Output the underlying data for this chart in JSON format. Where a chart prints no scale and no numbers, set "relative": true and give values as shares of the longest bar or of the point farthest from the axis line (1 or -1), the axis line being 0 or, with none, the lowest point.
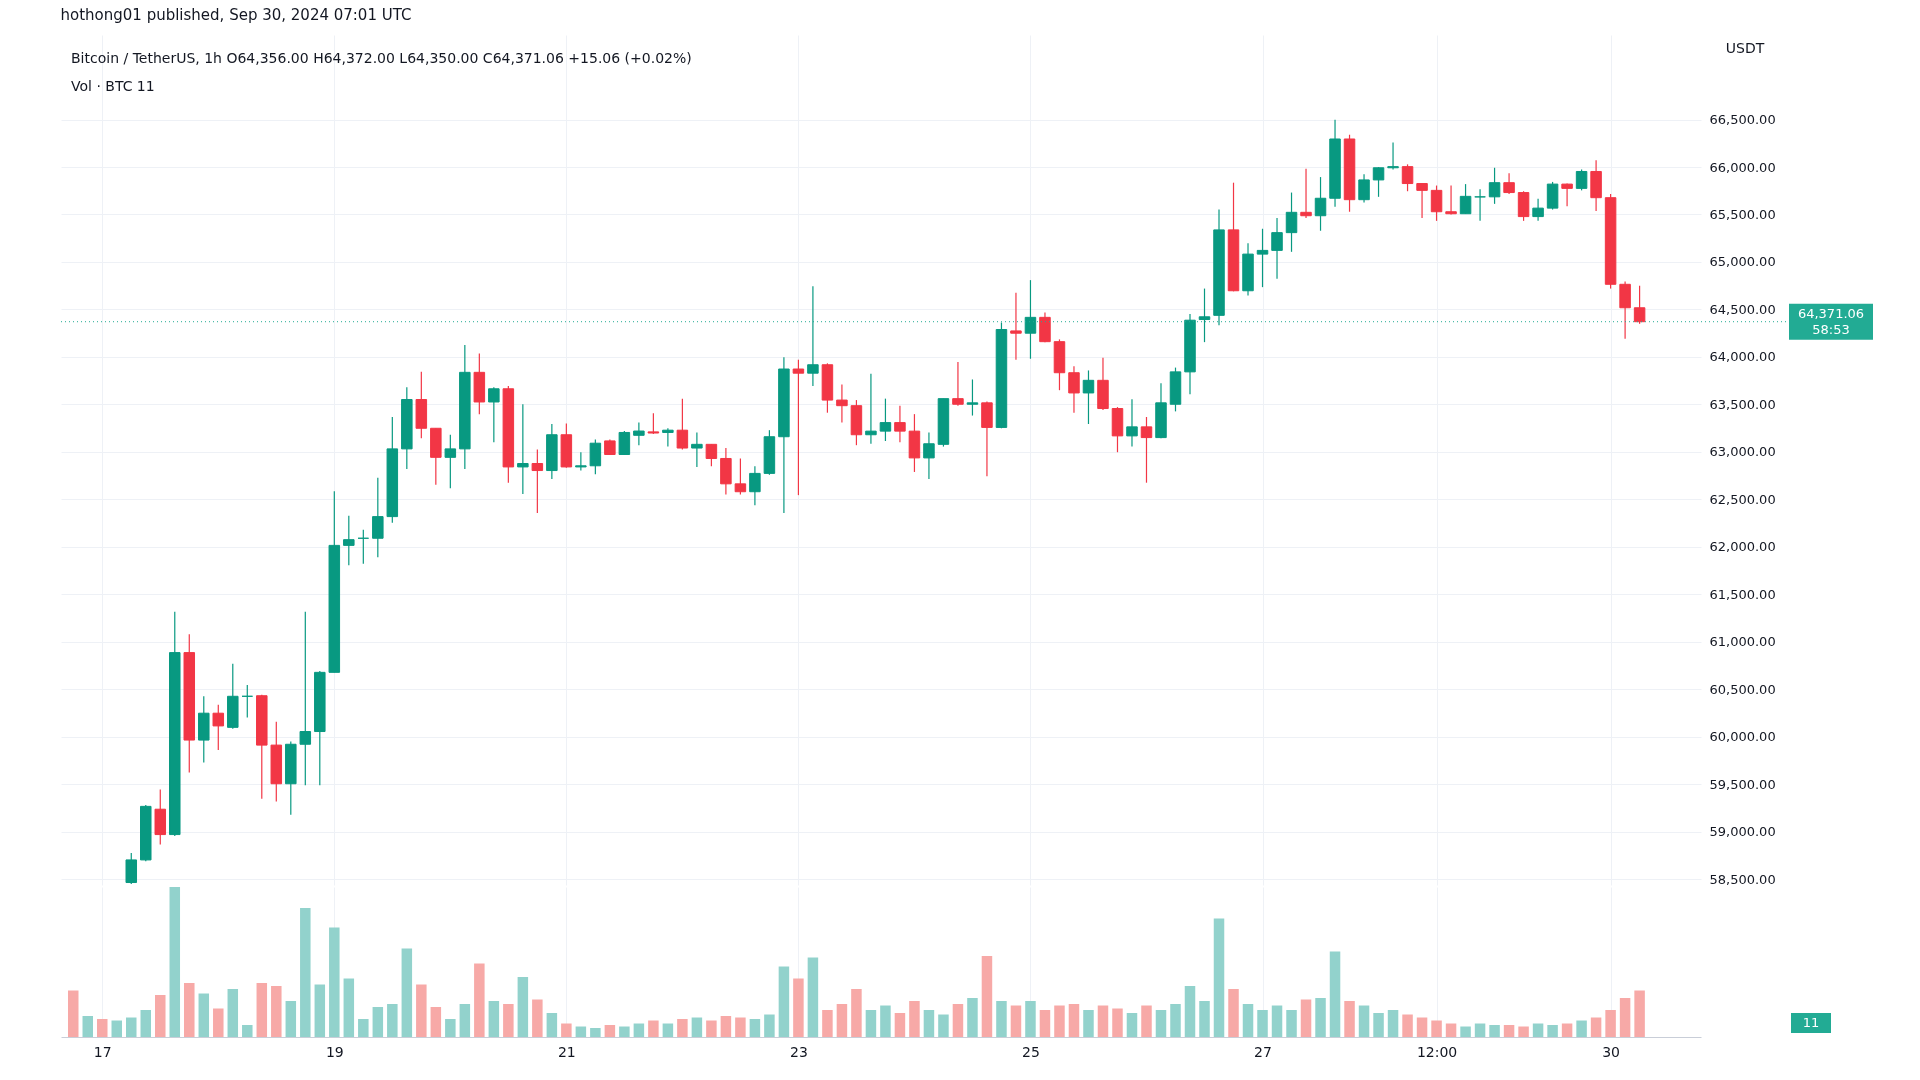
{
  "chart_data": [
    {
      "type": "candlestick",
      "title": "hothong01 published, Sep 30, 2024 07:01 UTC",
      "subtitle": "Bitcoin / TetherUS, 1h O64,356.00 H64,372.00 L64,350.00 C64,371.06 +15.06 (+0.02%)",
      "ylabel": "USDT",
      "x": [
        "2024-09-17T06:00",
        "2024-09-17T09:00",
        "2024-09-17T12:00",
        "2024-09-17T15:00",
        "2024-09-17T18:00",
        "2024-09-17T21:00",
        "2024-09-18T00:00",
        "2024-09-18T03:00",
        "2024-09-18T06:00",
        "2024-09-18T09:00",
        "2024-09-18T12:00",
        "2024-09-18T15:00",
        "2024-09-18T18:00",
        "2024-09-18T21:00",
        "2024-09-19T00:00",
        "2024-09-19T03:00",
        "2024-09-19T06:00",
        "2024-09-19T09:00",
        "2024-09-19T12:00",
        "2024-09-19T15:00",
        "2024-09-19T18:00",
        "2024-09-19T21:00",
        "2024-09-20T00:00",
        "2024-09-20T03:00",
        "2024-09-20T06:00",
        "2024-09-20T09:00",
        "2024-09-20T12:00",
        "2024-09-20T15:00",
        "2024-09-20T18:00",
        "2024-09-20T21:00",
        "2024-09-21T00:00",
        "2024-09-21T03:00",
        "2024-09-21T06:00",
        "2024-09-21T09:00",
        "2024-09-21T12:00",
        "2024-09-21T15:00",
        "2024-09-21T18:00",
        "2024-09-21T21:00",
        "2024-09-22T00:00",
        "2024-09-22T03:00",
        "2024-09-22T06:00",
        "2024-09-22T09:00",
        "2024-09-22T12:00",
        "2024-09-22T15:00",
        "2024-09-22T18:00",
        "2024-09-22T21:00",
        "2024-09-23T00:00",
        "2024-09-23T03:00",
        "2024-09-23T06:00",
        "2024-09-23T09:00",
        "2024-09-23T12:00",
        "2024-09-23T15:00",
        "2024-09-23T18:00",
        "2024-09-23T21:00",
        "2024-09-24T00:00",
        "2024-09-24T03:00",
        "2024-09-24T06:00",
        "2024-09-24T09:00",
        "2024-09-24T12:00",
        "2024-09-24T15:00",
        "2024-09-24T18:00",
        "2024-09-24T21:00",
        "2024-09-25T00:00",
        "2024-09-25T03:00",
        "2024-09-25T06:00",
        "2024-09-25T09:00",
        "2024-09-25T12:00",
        "2024-09-25T15:00",
        "2024-09-25T18:00",
        "2024-09-25T21:00",
        "2024-09-26T00:00",
        "2024-09-26T03:00",
        "2024-09-26T06:00",
        "2024-09-26T09:00",
        "2024-09-26T12:00",
        "2024-09-26T15:00",
        "2024-09-26T18:00",
        "2024-09-26T21:00",
        "2024-09-27T00:00",
        "2024-09-27T03:00",
        "2024-09-27T06:00",
        "2024-09-27T09:00",
        "2024-09-27T12:00",
        "2024-09-27T15:00",
        "2024-09-27T18:00",
        "2024-09-27T21:00",
        "2024-09-28T00:00",
        "2024-09-28T03:00",
        "2024-09-28T06:00",
        "2024-09-28T09:00",
        "2024-09-28T12:00",
        "2024-09-28T15:00",
        "2024-09-28T18:00",
        "2024-09-28T21:00",
        "2024-09-29T00:00",
        "2024-09-29T03:00",
        "2024-09-29T06:00",
        "2024-09-29T09:00",
        "2024-09-29T12:00",
        "2024-09-29T15:00",
        "2024-09-29T18:00",
        "2024-09-29T21:00",
        "2024-09-30T00:00",
        "2024-09-30T03:00",
        "2024-09-30T06:00"
      ],
      "ohlc": [
        [
          58466,
          58778,
          58451,
          58704
        ],
        [
          58704,
          59283,
          58689,
          59268
        ],
        [
          59238,
          59446,
          58867,
          58971
        ],
        [
          58971,
          61318,
          58956,
          60887
        ],
        [
          60887,
          61081,
          59625,
          59966
        ],
        [
          59966,
          60427,
          59729,
          60249
        ],
        [
          60249,
          60338,
          59862,
          60115
        ],
        [
          60100,
          60769,
          60085,
          60427
        ],
        [
          60427,
          60546,
          60204,
          60427
        ],
        [
          60433,
          60442,
          59348,
          59913
        ],
        [
          59913,
          60159,
          59319,
          59506
        ],
        [
          59506,
          59951,
          59179,
          59922
        ],
        [
          59922,
          61318,
          59491,
          60056
        ],
        [
          60056,
          60694,
          59491,
          60679
        ],
        [
          60679,
          62587,
          60679,
          62016
        ],
        [
          62016,
          62328,
          61808,
          62076
        ],
        [
          62091,
          62180,
          61823,
          62091
        ],
        [
          62091,
          62729,
          61892,
          62319
        ],
        [
          62319,
          63368,
          62254,
          63032
        ],
        [
          63032,
          63680,
          62819,
          63552
        ],
        [
          63552,
          63843,
          63145,
          63249
        ],
        [
          63249,
          63249,
          62655,
          62943
        ],
        [
          62943,
          63181,
          62617,
          63032
        ],
        [
          63032,
          64126,
          62819,
          63838
        ],
        [
          63838,
          64037,
          63398,
          63526
        ],
        [
          63526,
          63680,
          63101,
          63665
        ],
        [
          63665,
          63695,
          62676,
          62842
        ],
        [
          62842,
          63502,
          62557,
          62878
        ],
        [
          62878,
          63026,
          62358,
          62804
        ],
        [
          62804,
          63294,
          62715,
          63181
        ],
        [
          63181,
          63300,
          62833,
          62842
        ],
        [
          62842,
          62997,
          62804,
          62854
        ],
        [
          62854,
          63130,
          62765,
          63092
        ],
        [
          63116,
          63130,
          62967,
          62973
        ],
        [
          62973,
          63220,
          62967,
          63205
        ],
        [
          63175,
          63309,
          63071,
          63220
        ],
        [
          63211,
          63407,
          63190,
          63199
        ],
        [
          63205,
          63249,
          63056,
          63229
        ],
        [
          63229,
          63561,
          63026,
          63041
        ],
        [
          63041,
          63205,
          62842,
          63080
        ],
        [
          63080,
          63080,
          62848,
          62931
        ],
        [
          62931,
          63041,
          62551,
          62664
        ],
        [
          62664,
          62931,
          62551,
          62581
        ],
        [
          62581,
          62848,
          62438,
          62774
        ],
        [
          62774,
          63229,
          62759,
          63160
        ],
        [
          63160,
          63998,
          62358,
          63873
        ],
        [
          63873,
          63971,
          62545,
          63829
        ],
        [
          63829,
          64744,
          63695,
          63918
        ],
        [
          63918,
          63933,
          63413,
          63546
        ],
        [
          63546,
          63710,
          63309,
          63487
        ],
        [
          63487,
          63546,
          63071,
          63181
        ],
        [
          63181,
          63823,
          63086,
          63219
        ],
        [
          63219,
          63561,
          63115,
          63309
        ],
        [
          63309,
          63487,
          63101,
          63219
        ],
        [
          63219,
          63398,
          62789,
          62937
        ],
        [
          62937,
          63205,
          62714,
          63086
        ],
        [
          63080,
          63561,
          63056,
          63561
        ],
        [
          63561,
          63947,
          63487,
          63502
        ],
        [
          63502,
          63763,
          63383,
          63517
        ],
        [
          63517,
          63531,
          62744,
          63258
        ],
        [
          63258,
          64363,
          63249,
          64289
        ],
        [
          64274,
          64675,
          63971,
          64250
        ],
        [
          64250,
          64809,
          63981,
          64417
        ],
        [
          64417,
          64467,
          64155,
          64161
        ],
        [
          64161,
          64185,
          63650,
          63834
        ],
        [
          63834,
          63903,
          63413,
          63621
        ],
        [
          63621,
          63858,
          63294,
          63754
        ],
        [
          63754,
          63992,
          63442,
          63457
        ],
        [
          63457,
          63472,
          62997,
          63169
        ],
        [
          63169,
          63555,
          63056,
          63264
        ],
        [
          63264,
          63368,
          62676,
          63151
        ],
        [
          63151,
          63724,
          63145,
          63517
        ],
        [
          63502,
          63888,
          63427,
          63843
        ],
        [
          63843,
          64452,
          63606,
          64387
        ],
        [
          64394,
          64720,
          64156,
          64423
        ],
        [
          64438,
          65552,
          64334,
          65338
        ],
        [
          65338,
          65835,
          64691,
          64697
        ],
        [
          64697,
          65196,
          64646,
          65083
        ],
        [
          65083,
          65350,
          64735,
          65122
        ],
        [
          65122,
          65463,
          64824,
          65309
        ],
        [
          65309,
          65731,
          65107,
          65523
        ],
        [
          65523,
          65983,
          65463,
          65487
        ],
        [
          65487,
          65894,
          65329,
          65671
        ],
        [
          65671,
          66497,
          65582,
          66295
        ],
        [
          66295,
          66340,
          65529,
          65656
        ],
        [
          65656,
          65924,
          65627,
          65864
        ],
        [
          65864,
          65998,
          65686,
          65992
        ],
        [
          65992,
          66259,
          65974,
          66004
        ],
        [
          66004,
          66028,
          65745,
          65826
        ],
        [
          65826,
          65826,
          65463,
          65754
        ],
        [
          65754,
          65805,
          65433,
          65529
        ],
        [
          65529,
          65805,
          65499,
          65508
        ],
        [
          65508,
          65820,
          65508,
          65691
        ],
        [
          65685,
          65766,
          65433,
          65686
        ],
        [
          65686,
          65992,
          65612,
          65835
        ],
        [
          65835,
          65933,
          65716,
          65731
        ],
        [
          65731,
          65745,
          65433,
          65478
        ],
        [
          65478,
          65665,
          65433,
          65567
        ],
        [
          65567,
          65843,
          65552,
          65820
        ],
        [
          65820,
          65826,
          65588,
          65775
        ],
        [
          65775,
          65974,
          65754,
          65953
        ],
        [
          65953,
          66072,
          65537,
          65677
        ],
        [
          65677,
          65716,
          64720,
          64765
        ],
        [
          64765,
          64795,
          64192,
          64518
        ],
        [
          64518,
          64750,
          64349,
          64371.06
        ]
      ],
      "colors": [
        "#089981",
        "#089981",
        "#f23645",
        "#089981",
        "#f23645",
        "#089981",
        "#f23645",
        "#089981",
        "#089981",
        "#f23645",
        "#f23645",
        "#089981",
        "#089981",
        "#089981",
        "#089981",
        "#089981",
        "#089981",
        "#089981",
        "#089981",
        "#089981",
        "#f23645",
        "#f23645",
        "#089981",
        "#089981",
        "#f23645",
        "#089981",
        "#f23645",
        "#089981",
        "#f23645",
        "#089981",
        "#f23645",
        "#089981",
        "#089981",
        "#f23645",
        "#089981",
        "#089981",
        "#f23645",
        "#089981",
        "#f23645",
        "#089981",
        "#f23645",
        "#f23645",
        "#f23645",
        "#089981",
        "#089981",
        "#089981",
        "#f23645",
        "#089981",
        "#f23645",
        "#f23645",
        "#f23645",
        "#089981",
        "#089981",
        "#f23645",
        "#f23645",
        "#089981",
        "#089981",
        "#f23645",
        "#089981",
        "#f23645",
        "#089981",
        "#f23645",
        "#089981",
        "#f23645",
        "#f23645",
        "#f23645",
        "#089981",
        "#f23645",
        "#f23645",
        "#089981",
        "#f23645",
        "#089981",
        "#089981",
        "#089981",
        "#089981",
        "#089981",
        "#f23645",
        "#089981",
        "#089981",
        "#089981",
        "#089981",
        "#f23645",
        "#089981",
        "#089981",
        "#f23645",
        "#089981",
        "#089981",
        "#089981",
        "#f23645",
        "#f23645",
        "#f23645",
        "#f23645",
        "#089981",
        "#089981",
        "#089981",
        "#f23645",
        "#f23645",
        "#089981",
        "#089981",
        "#f23645",
        "#089981",
        "#f23645",
        "#f23645",
        "#f23645",
        "#f23645"
      ],
      "xlim": [
        "2024-09-16T16:30",
        "2024-09-30T17:40"
      ],
      "ylim": [
        58440,
        67390
      ],
      "xticks": [
        {
          "value": "2024-09-17",
          "label": null
        },
        {
          "value": "2024-09-19",
          "label": null
        },
        {
          "value": "2024-09-21",
          "label": null
        },
        {
          "value": "2024-09-23",
          "label": null
        },
        {
          "value": "2024-09-25",
          "label": null
        },
        {
          "value": "2024-09-27",
          "label": null
        },
        {
          "value": "2024-09-28T12:00",
          "label": null
        },
        {
          "value": "2024-09-30",
          "label": null
        }
      ],
      "yticks": [
        {
          "value": 58500,
          "label": "58,500.00"
        },
        {
          "value": 59000,
          "label": "59,000.00"
        },
        {
          "value": 59500,
          "label": "59,500.00"
        },
        {
          "value": 60000,
          "label": "60,000.00"
        },
        {
          "value": 60500,
          "label": "60,500.00"
        },
        {
          "value": 61000,
          "label": "61,000.00"
        },
        {
          "value": 61500,
          "label": "61,500.00"
        },
        {
          "value": 62000,
          "label": "62,000.00"
        },
        {
          "value": 62500,
          "label": "62,500.00"
        },
        {
          "value": 63000,
          "label": "63,000.00"
        },
        {
          "value": 63500,
          "label": "63,500.00"
        },
        {
          "value": 64000,
          "label": "64,000.00"
        },
        {
          "value": 64500,
          "label": "64,500.00"
        },
        {
          "value": 65000,
          "label": "65,000.00"
        },
        {
          "value": 65500,
          "label": "65,500.00"
        },
        {
          "value": 66000,
          "label": "66,000.00"
        },
        {
          "value": 66500,
          "label": "66,500.00"
        }
      ],
      "grid": true,
      "tick_labels": "y",
      "ref_lines": [
        {
          "axis": "y",
          "value": 64371.06,
          "label": "64,371.06",
          "color": "#22ab94",
          "line_style": "dotted"
        }
      ],
      "annotations": [
        "58:53"
      ]
    },
    {
      "type": "bar",
      "title": "Vol · BTC 11",
      "relative": true,
      "x": [
        "2024-09-16T18:00",
        "2024-09-16T21:00",
        "2024-09-17T00:00",
        "2024-09-17T03:00",
        "2024-09-17T06:00",
        "2024-09-17T09:00",
        "2024-09-17T12:00",
        "2024-09-17T15:00",
        "2024-09-17T18:00",
        "2024-09-17T21:00",
        "2024-09-18T00:00",
        "2024-09-18T03:00",
        "2024-09-18T06:00",
        "2024-09-18T09:00",
        "2024-09-18T12:00",
        "2024-09-18T15:00",
        "2024-09-18T18:00",
        "2024-09-18T21:00",
        "2024-09-19T00:00",
        "2024-09-19T03:00",
        "2024-09-19T06:00",
        "2024-09-19T09:00",
        "2024-09-19T12:00",
        "2024-09-19T15:00",
        "2024-09-19T18:00",
        "2024-09-19T21:00",
        "2024-09-20T00:00",
        "2024-09-20T03:00",
        "2024-09-20T06:00",
        "2024-09-20T09:00",
        "2024-09-20T12:00",
        "2024-09-20T15:00",
        "2024-09-20T18:00",
        "2024-09-20T21:00",
        "2024-09-21T00:00",
        "2024-09-21T03:00",
        "2024-09-21T06:00",
        "2024-09-21T09:00",
        "2024-09-21T12:00",
        "2024-09-21T15:00",
        "2024-09-21T18:00",
        "2024-09-21T21:00",
        "2024-09-22T00:00",
        "2024-09-22T03:00",
        "2024-09-22T06:00",
        "2024-09-22T09:00",
        "2024-09-22T12:00",
        "2024-09-22T15:00",
        "2024-09-22T18:00",
        "2024-09-22T21:00",
        "2024-09-23T00:00",
        "2024-09-23T03:00",
        "2024-09-23T06:00",
        "2024-09-23T09:00",
        "2024-09-23T12:00",
        "2024-09-23T15:00",
        "2024-09-23T18:00",
        "2024-09-23T21:00",
        "2024-09-24T00:00",
        "2024-09-24T03:00",
        "2024-09-24T06:00",
        "2024-09-24T09:00",
        "2024-09-24T12:00",
        "2024-09-24T15:00",
        "2024-09-24T18:00",
        "2024-09-24T21:00",
        "2024-09-25T00:00",
        "2024-09-25T03:00",
        "2024-09-25T06:00",
        "2024-09-25T09:00",
        "2024-09-25T12:00",
        "2024-09-25T15:00",
        "2024-09-25T18:00",
        "2024-09-25T21:00",
        "2024-09-26T00:00",
        "2024-09-26T03:00",
        "2024-09-26T06:00",
        "2024-09-26T09:00",
        "2024-09-26T12:00",
        "2024-09-26T15:00",
        "2024-09-26T18:00",
        "2024-09-26T21:00",
        "2024-09-27T00:00",
        "2024-09-27T03:00",
        "2024-09-27T06:00",
        "2024-09-27T09:00",
        "2024-09-27T12:00",
        "2024-09-27T15:00",
        "2024-09-27T18:00",
        "2024-09-27T21:00",
        "2024-09-28T00:00",
        "2024-09-28T03:00",
        "2024-09-28T06:00",
        "2024-09-28T09:00",
        "2024-09-28T12:00",
        "2024-09-28T15:00",
        "2024-09-28T18:00",
        "2024-09-28T21:00",
        "2024-09-29T00:00",
        "2024-09-29T03:00",
        "2024-09-29T06:00",
        "2024-09-29T09:00",
        "2024-09-29T12:00",
        "2024-09-29T15:00",
        "2024-09-29T18:00",
        "2024-09-29T21:00",
        "2024-09-30T00:00",
        "2024-09-30T03:00",
        "2024-09-30T06:00"
      ],
      "values": [
        0.31,
        0.14,
        0.12,
        0.11,
        0.13,
        0.18,
        0.28,
        1,
        0.36,
        0.29,
        0.19,
        0.32,
        0.08,
        0.36,
        0.34,
        0.24,
        0.86,
        0.35,
        0.73,
        0.39,
        0.12,
        0.2,
        0.22,
        0.59,
        0.35,
        0.2,
        0.12,
        0.22,
        0.49,
        0.24,
        0.22,
        0.4,
        0.25,
        0.16,
        0.09,
        0.07,
        0.06,
        0.08,
        0.07,
        0.09,
        0.11,
        0.09,
        0.12,
        0.13,
        0.11,
        0.14,
        0.13,
        0.12,
        0.15,
        0.47,
        0.39,
        0.53,
        0.18,
        0.22,
        0.32,
        0.18,
        0.21,
        0.16,
        0.24,
        0.18,
        0.15,
        0.22,
        0.26,
        0.54,
        0.24,
        0.21,
        0.24,
        0.18,
        0.21,
        0.22,
        0.18,
        0.21,
        0.19,
        0.16,
        0.21,
        0.18,
        0.22,
        0.34,
        0.24,
        0.79,
        0.32,
        0.22,
        0.18,
        0.21,
        0.18,
        0.25,
        0.26,
        0.57,
        0.24,
        0.21,
        0.16,
        0.18,
        0.15,
        0.13,
        0.11,
        0.09,
        0.07,
        0.09,
        0.08,
        0.08,
        0.07,
        0.09,
        0.08,
        0.09,
        0.11,
        0.13,
        0.18,
        0.26,
        0.31
      ],
      "colors": [
        "#f7a9a7",
        "#92d2cc",
        "#f7a9a7",
        "#92d2cc",
        "#92d2cc",
        "#92d2cc",
        "#f7a9a7",
        "#92d2cc",
        "#f7a9a7",
        "#92d2cc",
        "#f7a9a7",
        "#92d2cc",
        "#92d2cc",
        "#f7a9a7",
        "#f7a9a7",
        "#92d2cc",
        "#92d2cc",
        "#92d2cc",
        "#92d2cc",
        "#92d2cc",
        "#92d2cc",
        "#92d2cc",
        "#92d2cc",
        "#92d2cc",
        "#f7a9a7",
        "#f7a9a7",
        "#92d2cc",
        "#92d2cc",
        "#f7a9a7",
        "#92d2cc",
        "#f7a9a7",
        "#92d2cc",
        "#f7a9a7",
        "#92d2cc",
        "#f7a9a7",
        "#92d2cc",
        "#92d2cc",
        "#f7a9a7",
        "#92d2cc",
        "#92d2cc",
        "#f7a9a7",
        "#92d2cc",
        "#f7a9a7",
        "#92d2cc",
        "#f7a9a7",
        "#f7a9a7",
        "#f7a9a7",
        "#92d2cc",
        "#92d2cc",
        "#92d2cc",
        "#f7a9a7",
        "#92d2cc",
        "#f7a9a7",
        "#f7a9a7",
        "#f7a9a7",
        "#92d2cc",
        "#92d2cc",
        "#f7a9a7",
        "#f7a9a7",
        "#92d2cc",
        "#92d2cc",
        "#f7a9a7",
        "#92d2cc",
        "#f7a9a7",
        "#92d2cc",
        "#f7a9a7",
        "#92d2cc",
        "#f7a9a7",
        "#f7a9a7",
        "#f7a9a7",
        "#92d2cc",
        "#f7a9a7",
        "#f7a9a7",
        "#92d2cc",
        "#f7a9a7",
        "#92d2cc",
        "#92d2cc",
        "#92d2cc",
        "#92d2cc",
        "#92d2cc",
        "#f7a9a7",
        "#92d2cc",
        "#92d2cc",
        "#92d2cc",
        "#92d2cc",
        "#f7a9a7",
        "#92d2cc",
        "#92d2cc",
        "#f7a9a7",
        "#92d2cc",
        "#92d2cc",
        "#92d2cc",
        "#f7a9a7",
        "#f7a9a7",
        "#f7a9a7",
        "#f7a9a7",
        "#92d2cc",
        "#92d2cc",
        "#92d2cc",
        "#f7a9a7",
        "#f7a9a7",
        "#92d2cc",
        "#92d2cc",
        "#f7a9a7",
        "#92d2cc",
        "#f7a9a7",
        "#f7a9a7",
        "#f7a9a7",
        "#f7a9a7"
      ],
      "xlim": [
        "2024-09-16T16:30",
        "2024-09-30T17:40"
      ],
      "xticks": [
        {
          "value": "2024-09-17",
          "label": "17"
        },
        {
          "value": "2024-09-19",
          "label": "19"
        },
        {
          "value": "2024-09-21",
          "label": "21"
        },
        {
          "value": "2024-09-23",
          "label": "23"
        },
        {
          "value": "2024-09-25",
          "label": "25"
        },
        {
          "value": "2024-09-27",
          "label": "27"
        },
        {
          "value": "2024-09-28T12:00",
          "label": "12:00"
        },
        {
          "value": "2024-09-30",
          "label": "30"
        }
      ],
      "grid": "x",
      "tick_labels": "x",
      "annotations": [
        "11"
      ]
    }
  ]
}
